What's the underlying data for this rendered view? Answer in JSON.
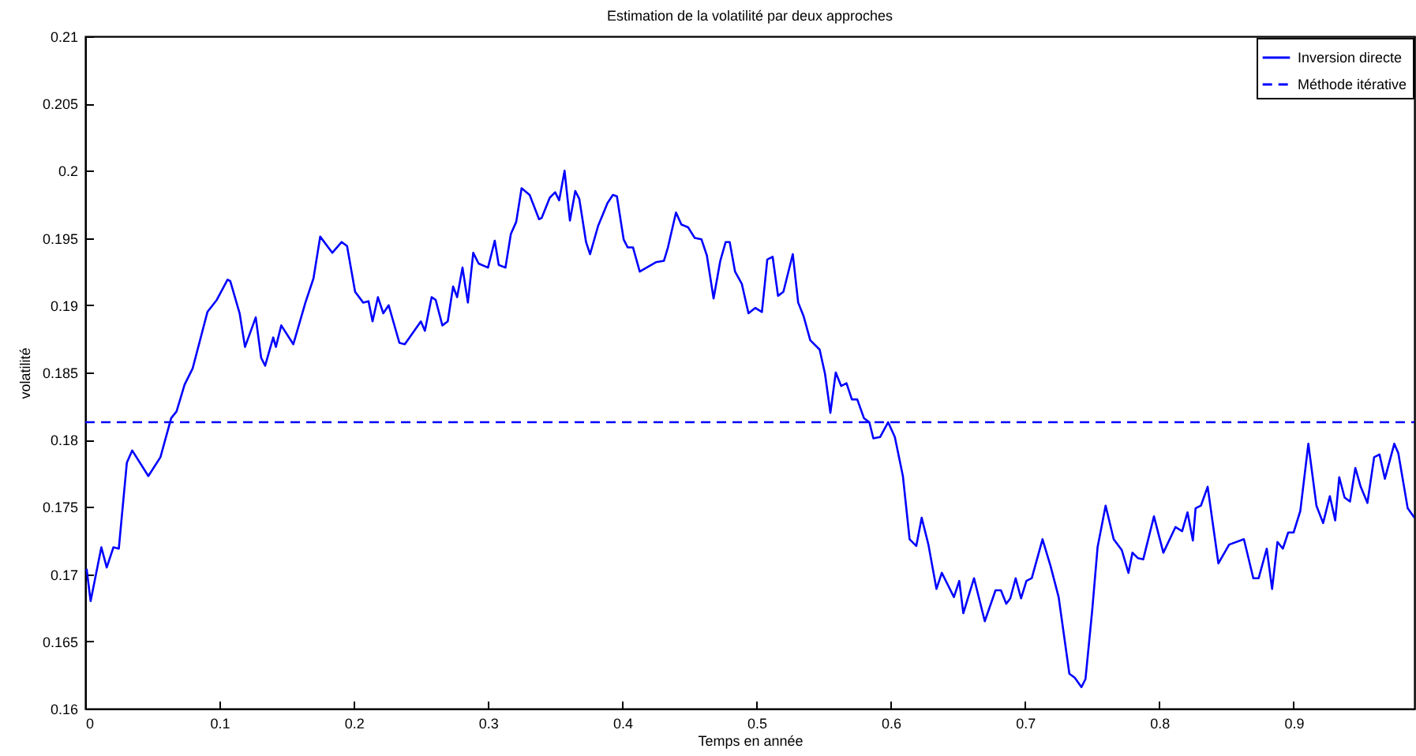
{
  "chart_data": {
    "type": "line",
    "title": "Estimation de la volatilité par deux approches",
    "xlabel": "Temps en année",
    "ylabel": "volatilité",
    "xlim": [
      0,
      0.99
    ],
    "xticks": [
      0,
      0.1,
      0.2,
      0.3,
      0.4,
      0.5,
      0.6,
      0.7,
      0.8,
      0.9
    ],
    "ylim": [
      0.16,
      0.21
    ],
    "yticks": [
      0.16,
      0.165,
      0.17,
      0.175,
      0.18,
      0.185,
      0.19,
      0.195,
      0.2,
      0.205,
      0.21
    ],
    "legend": "top right",
    "grid": false,
    "marker": "none",
    "series": [
      {
        "name": "Inversion directe",
        "color": "#0000ff",
        "line_style": "solid",
        "x": [
          0.001,
          0.004,
          0.012,
          0.016,
          0.021,
          0.025,
          0.031,
          0.035,
          0.047,
          0.056,
          0.064,
          0.068,
          0.074,
          0.08,
          0.091,
          0.098,
          0.106,
          0.108,
          0.115,
          0.119,
          0.127,
          0.131,
          0.134,
          0.14,
          0.142,
          0.146,
          0.155,
          0.164,
          0.17,
          0.175,
          0.184,
          0.191,
          0.195,
          0.201,
          0.207,
          0.211,
          0.214,
          0.218,
          0.222,
          0.226,
          0.234,
          0.238,
          0.25,
          0.253,
          0.258,
          0.261,
          0.266,
          0.27,
          0.274,
          0.277,
          0.281,
          0.285,
          0.289,
          0.293,
          0.3,
          0.305,
          0.308,
          0.313,
          0.317,
          0.321,
          0.325,
          0.331,
          0.338,
          0.34,
          0.346,
          0.35,
          0.353,
          0.357,
          0.361,
          0.365,
          0.368,
          0.373,
          0.376,
          0.382,
          0.389,
          0.393,
          0.396,
          0.401,
          0.404,
          0.408,
          0.413,
          0.425,
          0.431,
          0.434,
          0.44,
          0.444,
          0.449,
          0.454,
          0.459,
          0.463,
          0.468,
          0.473,
          0.477,
          0.48,
          0.484,
          0.489,
          0.494,
          0.499,
          0.504,
          0.508,
          0.512,
          0.516,
          0.52,
          0.527,
          0.531,
          0.535,
          0.54,
          0.547,
          0.551,
          0.555,
          0.559,
          0.563,
          0.567,
          0.571,
          0.575,
          0.58,
          0.584,
          0.587,
          0.592,
          0.598,
          0.603,
          0.609,
          0.614,
          0.619,
          0.623,
          0.628,
          0.634,
          0.638,
          0.642,
          0.647,
          0.651,
          0.654,
          0.662,
          0.67,
          0.678,
          0.682,
          0.686,
          0.689,
          0.693,
          0.697,
          0.701,
          0.705,
          0.713,
          0.719,
          0.725,
          0.733,
          0.737,
          0.742,
          0.745,
          0.75,
          0.754,
          0.76,
          0.766,
          0.772,
          0.777,
          0.78,
          0.784,
          0.788,
          0.796,
          0.803,
          0.812,
          0.817,
          0.821,
          0.825,
          0.827,
          0.831,
          0.836,
          0.844,
          0.852,
          0.863,
          0.87,
          0.874,
          0.88,
          0.884,
          0.888,
          0.892,
          0.896,
          0.9,
          0.905,
          0.911,
          0.917,
          0.922,
          0.927,
          0.931,
          0.934,
          0.938,
          0.942,
          0.946,
          0.95,
          0.955,
          0.96,
          0.964,
          0.968,
          0.975,
          0.978,
          0.985,
          0.99
        ],
        "values": [
          0.1704,
          0.168,
          0.172,
          0.1705,
          0.172,
          0.1719,
          0.1783,
          0.1792,
          0.1773,
          0.1787,
          0.1816,
          0.1821,
          0.1841,
          0.1853,
          0.1895,
          0.1904,
          0.1919,
          0.1918,
          0.1894,
          0.1869,
          0.1891,
          0.1861,
          0.1855,
          0.1876,
          0.1869,
          0.1885,
          0.1871,
          0.1902,
          0.192,
          0.1951,
          0.1939,
          0.1947,
          0.1944,
          0.191,
          0.1902,
          0.1903,
          0.1888,
          0.1906,
          0.1894,
          0.19,
          0.1872,
          0.1871,
          0.1888,
          0.1881,
          0.1906,
          0.1904,
          0.1885,
          0.1888,
          0.1914,
          0.1906,
          0.1928,
          0.1902,
          0.1939,
          0.1931,
          0.1928,
          0.1948,
          0.193,
          0.1928,
          0.1953,
          0.1962,
          0.1987,
          0.1982,
          0.1964,
          0.1965,
          0.198,
          0.1984,
          0.1978,
          0.2,
          0.1963,
          0.1985,
          0.1979,
          0.1947,
          0.1938,
          0.1959,
          0.1976,
          0.1982,
          0.1981,
          0.1949,
          0.1943,
          0.1943,
          0.1925,
          0.1932,
          0.1933,
          0.1943,
          0.1969,
          0.196,
          0.1958,
          0.195,
          0.1949,
          0.1937,
          0.1905,
          0.1933,
          0.1947,
          0.1947,
          0.1925,
          0.1916,
          0.1894,
          0.1898,
          0.1895,
          0.1934,
          0.1936,
          0.1907,
          0.191,
          0.1938,
          0.1902,
          0.1892,
          0.1874,
          0.1867,
          0.1849,
          0.182,
          0.185,
          0.184,
          0.1842,
          0.183,
          0.183,
          0.1816,
          0.1813,
          0.1801,
          0.1802,
          0.1813,
          0.1802,
          0.1773,
          0.1726,
          0.1721,
          0.1742,
          0.1722,
          0.1689,
          0.1701,
          0.1693,
          0.1683,
          0.1695,
          0.1671,
          0.1697,
          0.1665,
          0.1688,
          0.1688,
          0.1678,
          0.1682,
          0.1697,
          0.1682,
          0.1695,
          0.1697,
          0.1726,
          0.1706,
          0.1683,
          0.1626,
          0.1623,
          0.1616,
          0.1622,
          0.1673,
          0.172,
          0.1751,
          0.1726,
          0.1718,
          0.1701,
          0.1716,
          0.1712,
          0.1711,
          0.1743,
          0.1716,
          0.1735,
          0.1732,
          0.1746,
          0.1725,
          0.1749,
          0.1751,
          0.1765,
          0.1708,
          0.1722,
          0.1726,
          0.1697,
          0.1697,
          0.1719,
          0.1689,
          0.1724,
          0.1719,
          0.1731,
          0.1731,
          0.1747,
          0.1797,
          0.1751,
          0.1738,
          0.1758,
          0.174,
          0.1772,
          0.1757,
          0.1754,
          0.1779,
          0.1765,
          0.1753,
          0.1787,
          0.1789,
          0.1771,
          0.1797,
          0.179,
          0.1749,
          0.1742
        ]
      },
      {
        "name": "Méthode itérative",
        "color": "#0000ff",
        "line_style": "dashed",
        "x": [
          0,
          0.99
        ],
        "values": [
          0.1813,
          0.1813
        ]
      }
    ]
  }
}
